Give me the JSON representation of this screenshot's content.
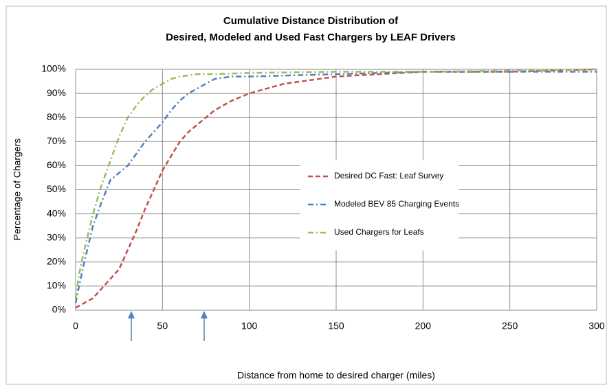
{
  "chart_data": {
    "type": "line",
    "title": [
      "Cumulative Distance Distribution of",
      "Desired, Modeled and Used Fast Chargers by LEAF Drivers"
    ],
    "xlabel": "Distance from home to desired charger (miles)",
    "ylabel": "Percentage of Chargers",
    "xlim": [
      0,
      300
    ],
    "xticks": [
      0,
      50,
      100,
      150,
      200,
      250,
      300
    ],
    "ylim": [
      0,
      100
    ],
    "yticks": [
      {
        "value": 0,
        "label": "0%"
      },
      {
        "value": 10,
        "label": "10%"
      },
      {
        "value": 20,
        "label": "20%"
      },
      {
        "value": 30,
        "label": "30%"
      },
      {
        "value": 40,
        "label": "40%"
      },
      {
        "value": 50,
        "label": "50%"
      },
      {
        "value": 60,
        "label": "60%"
      },
      {
        "value": 70,
        "label": "70%"
      },
      {
        "value": 80,
        "label": "80%"
      },
      {
        "value": 90,
        "label": "90%"
      },
      {
        "value": 100,
        "label": "100%"
      }
    ],
    "grid": true,
    "legend": "center",
    "series": [
      {
        "name": "Desired DC Fast: Leaf Survey",
        "color": "#c0504d",
        "dash": "dashed",
        "x": [
          0,
          5,
          10,
          15,
          20,
          25,
          30,
          35,
          40,
          45,
          50,
          55,
          60,
          65,
          70,
          75,
          80,
          85,
          90,
          100,
          110,
          120,
          130,
          140,
          150,
          175,
          200,
          250,
          300
        ],
        "values": [
          1,
          3,
          5,
          9,
          13,
          17,
          25,
          33,
          42,
          50,
          58,
          64,
          70,
          74,
          77,
          80,
          83,
          85,
          87,
          90,
          92,
          94,
          95,
          96,
          97,
          98,
          99,
          99,
          100
        ]
      },
      {
        "name": "Modeled BEV 85 Charging Events",
        "color": "#4f81bd",
        "dash": "dashdot",
        "x": [
          0,
          2,
          5,
          10,
          15,
          20,
          25,
          30,
          35,
          40,
          45,
          50,
          55,
          60,
          65,
          70,
          75,
          80,
          90,
          100,
          150,
          200,
          300
        ],
        "values": [
          3,
          10,
          20,
          35,
          45,
          54,
          57,
          60,
          65,
          70,
          74,
          78,
          83,
          87,
          90,
          92,
          94,
          96,
          97,
          97,
          98,
          99,
          99
        ]
      },
      {
        "name": "Used Chargers for Leafs",
        "color": "#9bbb59",
        "dash": "dashdot",
        "x": [
          0,
          2,
          5,
          10,
          15,
          20,
          25,
          30,
          35,
          40,
          45,
          50,
          55,
          60,
          70,
          80,
          100,
          150,
          200,
          300
        ],
        "values": [
          5,
          15,
          25,
          40,
          52,
          62,
          72,
          80,
          85,
          89,
          92,
          94,
          96,
          97,
          98,
          98,
          98.5,
          99,
          99,
          100
        ]
      }
    ]
  }
}
